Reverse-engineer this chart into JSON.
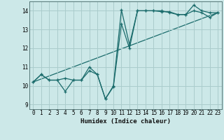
{
  "background_color": "#cce8e8",
  "grid_color": "#aacccc",
  "line_color": "#1a6b6b",
  "marker": "+",
  "xlabel": "Humidex (Indice chaleur)",
  "xlim": [
    -0.5,
    23.5
  ],
  "ylim": [
    8.75,
    14.5
  ],
  "yticks": [
    9,
    10,
    11,
    12,
    13,
    14
  ],
  "xticks": [
    0,
    1,
    2,
    3,
    4,
    5,
    6,
    7,
    8,
    9,
    10,
    11,
    12,
    13,
    14,
    15,
    16,
    17,
    18,
    19,
    20,
    21,
    22,
    23
  ],
  "line1_x": [
    0,
    1,
    2,
    3,
    4,
    5,
    6,
    7,
    8,
    9,
    10,
    11,
    12,
    13,
    14,
    15,
    16,
    17,
    18,
    19,
    20,
    21,
    22,
    23
  ],
  "line1_y": [
    10.2,
    10.6,
    10.3,
    10.3,
    10.4,
    10.3,
    10.3,
    10.8,
    10.6,
    9.3,
    9.95,
    13.3,
    12.0,
    14.0,
    14.0,
    14.0,
    13.95,
    13.95,
    13.8,
    13.8,
    14.3,
    14.0,
    13.9,
    13.9
  ],
  "line2_x": [
    0,
    1,
    2,
    3,
    4,
    5,
    6,
    7,
    8,
    9,
    10,
    11,
    12,
    13,
    14,
    15,
    16,
    17,
    18,
    19,
    20,
    21,
    22,
    23
  ],
  "line2_y": [
    10.2,
    10.6,
    10.3,
    10.3,
    9.7,
    10.3,
    10.3,
    11.0,
    10.6,
    9.3,
    10.0,
    14.05,
    12.2,
    14.0,
    14.0,
    14.0,
    14.0,
    13.9,
    13.8,
    13.8,
    14.0,
    13.9,
    13.65,
    13.9
  ],
  "line3_x": [
    0,
    23
  ],
  "line3_y": [
    10.2,
    13.9
  ]
}
